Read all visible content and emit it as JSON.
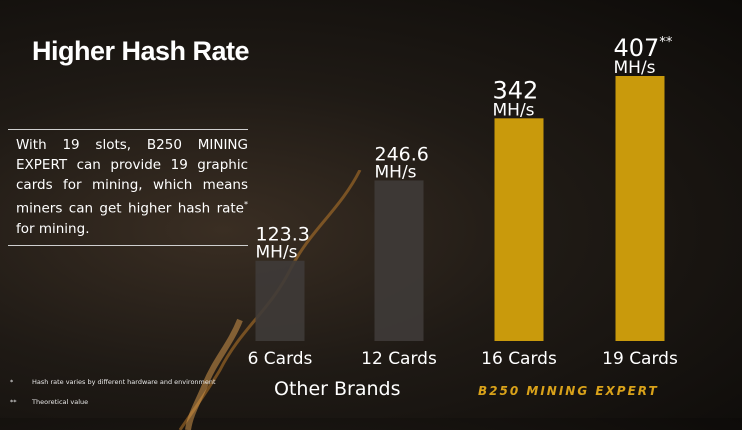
{
  "slide": {
    "title": "Higher Hash Rate",
    "description_before": "With 19 slots, B250 MINING EXPERT can provide 19 graphic cards for mining, which means miners can get higher hash rate",
    "description_mark": "*",
    "description_after": " for mining.",
    "footnotes": [
      {
        "mark": "*",
        "text": "Hash rate varies by different hardware and environment"
      },
      {
        "mark": "**",
        "text": "Theoretical value"
      }
    ],
    "group_label": "Other Brands",
    "brand_label": "B250 MINING EXPERT"
  },
  "colors": {
    "other_brands_bar": "#3f3b38",
    "b250_bar": "#c99a0c",
    "text": "#ffffff",
    "brand": "#d9a21a"
  },
  "chart_data": {
    "type": "bar",
    "categories": [
      "6 Cards",
      "12 Cards",
      "16 Cards",
      "19 Cards"
    ],
    "values": [
      123.3,
      246.6,
      342,
      407
    ],
    "value_labels": [
      "123.3",
      "246.6",
      "342",
      "407"
    ],
    "value_marks": [
      "",
      "",
      "",
      "**"
    ],
    "unit": "MH/s",
    "groups": [
      {
        "label": "Other Brands",
        "categories": [
          "6 Cards",
          "12 Cards"
        ]
      },
      {
        "label": "B250 MINING EXPERT",
        "categories": [
          "16 Cards",
          "19 Cards"
        ]
      }
    ],
    "title": "Higher Hash Rate",
    "grid": false,
    "legend": "none"
  }
}
